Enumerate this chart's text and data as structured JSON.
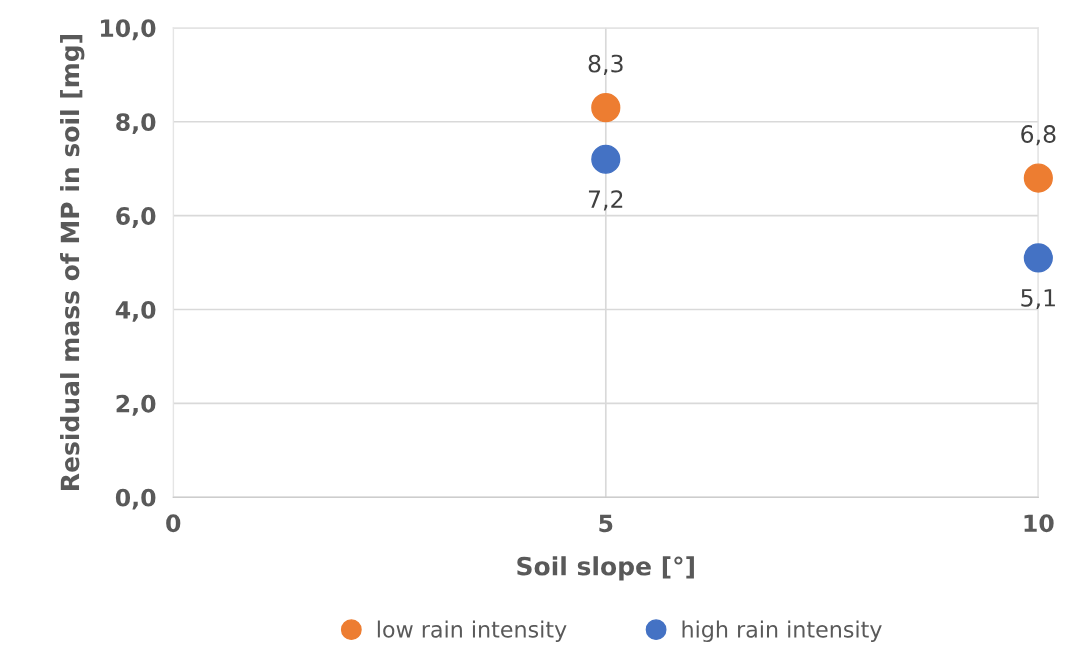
{
  "chart_data": {
    "type": "scatter",
    "xlabel": "Soil slope [°]",
    "ylabel": "Residual mass of MP in soil [mg]",
    "x": [
      5,
      10
    ],
    "xlim": [
      0,
      10
    ],
    "xticks": [
      0,
      5,
      10
    ],
    "ylim": [
      0,
      10
    ],
    "yticks": [
      {
        "value": 0,
        "label": "0,0"
      },
      {
        "value": 2,
        "label": "2,0"
      },
      {
        "value": 4,
        "label": "4,0"
      },
      {
        "value": 6,
        "label": "6,0"
      },
      {
        "value": 8,
        "label": "8,0"
      },
      {
        "value": 10,
        "label": "10,0"
      }
    ],
    "grid": true,
    "legend": "bottom",
    "marker": "circle",
    "series": [
      {
        "name": "low rain intensity",
        "color": "#ed7d31",
        "values": [
          8.3,
          6.8
        ],
        "value_labels": [
          "8,3",
          "6,8"
        ]
      },
      {
        "name": "high rain intensity",
        "color": "#4472c4",
        "values": [
          7.2,
          5.1
        ],
        "value_labels": [
          "7,2",
          "5,1"
        ]
      }
    ]
  }
}
